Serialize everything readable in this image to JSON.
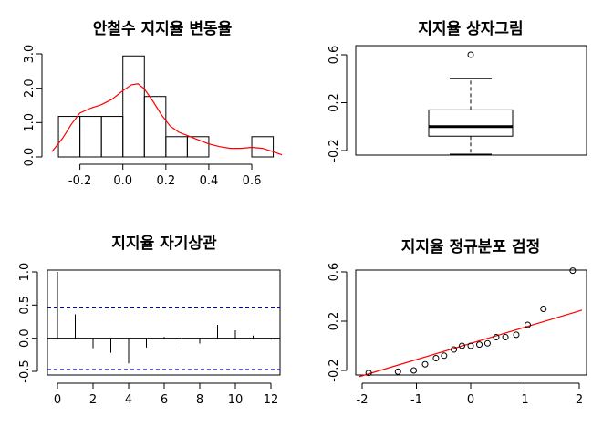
{
  "chart_data": [
    {
      "type": "histogram",
      "title": "안철수 지지율 변동율",
      "xlabel": "",
      "ylabel": "",
      "bins": [
        {
          "from": -0.3,
          "to": -0.2,
          "density": 1.18
        },
        {
          "from": -0.2,
          "to": -0.1,
          "density": 1.18
        },
        {
          "from": -0.1,
          "to": 0.0,
          "density": 1.18
        },
        {
          "from": 0.0,
          "to": 0.1,
          "density": 2.94
        },
        {
          "from": 0.1,
          "to": 0.2,
          "density": 1.76
        },
        {
          "from": 0.2,
          "to": 0.3,
          "density": 0.59
        },
        {
          "from": 0.3,
          "to": 0.4,
          "density": 0.59
        },
        {
          "from": 0.4,
          "to": 0.5,
          "density": 0.0
        },
        {
          "from": 0.5,
          "to": 0.6,
          "density": 0.0
        },
        {
          "from": 0.6,
          "to": 0.7,
          "density": 0.59
        }
      ],
      "density_curve": {
        "color": "#ff0000",
        "x": [
          -0.33,
          -0.28,
          -0.24,
          -0.2,
          -0.15,
          -0.1,
          -0.05,
          0.0,
          0.04,
          0.07,
          0.1,
          0.14,
          0.18,
          0.22,
          0.26,
          0.3,
          0.35,
          0.4,
          0.45,
          0.5,
          0.55,
          0.6,
          0.65,
          0.7,
          0.74
        ],
        "y": [
          0.15,
          0.55,
          0.95,
          1.28,
          1.42,
          1.52,
          1.68,
          1.93,
          2.1,
          2.13,
          1.98,
          1.62,
          1.22,
          0.9,
          0.72,
          0.62,
          0.5,
          0.38,
          0.3,
          0.25,
          0.25,
          0.28,
          0.25,
          0.15,
          0.06
        ]
      },
      "x_ticks": [
        -0.2,
        0.0,
        0.2,
        0.4,
        0.6
      ],
      "x_tick_labels": [
        "-0.2",
        "0.0",
        "0.2",
        "0.4",
        "0.6"
      ],
      "y_ticks": [
        0,
        1,
        2,
        3
      ],
      "y_tick_labels": [
        "0.0",
        "1.0",
        "2.0",
        "3.0"
      ],
      "xlim": [
        -0.33,
        0.74
      ],
      "ylim": [
        0,
        3.2
      ]
    },
    {
      "type": "boxplot",
      "title": "지지율 상자그림",
      "stats": {
        "min": -0.23,
        "q1": -0.08,
        "median": 0.0,
        "q3": 0.14,
        "max": 0.4
      },
      "outliers": [
        0.6
      ],
      "y_ticks": [
        -0.2,
        0.2,
        0.6
      ],
      "y_tick_labels": [
        "-0.2",
        "0.2",
        "0.6"
      ],
      "ylim": [
        -0.25,
        0.63
      ]
    },
    {
      "type": "acf",
      "title": "지지율 자기상관",
      "lags": [
        0,
        1,
        2,
        3,
        4,
        5,
        6,
        7,
        8,
        9,
        10,
        11,
        12
      ],
      "values": [
        1.0,
        0.36,
        -0.15,
        -0.22,
        -0.38,
        -0.14,
        0.02,
        -0.18,
        -0.08,
        0.2,
        0.12,
        0.04,
        -0.02
      ],
      "confidence_band": 0.47,
      "band_color": "#0000cc",
      "x_ticks": [
        0,
        2,
        4,
        6,
        8,
        10,
        12
      ],
      "x_tick_labels": [
        "0",
        "2",
        "4",
        "6",
        "8",
        "10",
        "12"
      ],
      "y_ticks": [
        -0.5,
        0.0,
        0.5,
        1.0
      ],
      "y_tick_labels": [
        "-0.5",
        "0.0",
        "0.5",
        "1.0"
      ],
      "xlim": [
        -0.4,
        12.4
      ],
      "ylim": [
        -0.53,
        1.02
      ]
    },
    {
      "type": "scatter",
      "subtype": "qq",
      "title": "지지율 정규분포 검정",
      "points": [
        {
          "x": -1.88,
          "y": -0.22
        },
        {
          "x": -1.34,
          "y": -0.21
        },
        {
          "x": -1.05,
          "y": -0.2
        },
        {
          "x": -0.84,
          "y": -0.15
        },
        {
          "x": -0.64,
          "y": -0.1
        },
        {
          "x": -0.49,
          "y": -0.08
        },
        {
          "x": -0.31,
          "y": -0.03
        },
        {
          "x": -0.16,
          "y": 0.0
        },
        {
          "x": 0.0,
          "y": 0.0
        },
        {
          "x": 0.16,
          "y": 0.01
        },
        {
          "x": 0.31,
          "y": 0.02
        },
        {
          "x": 0.47,
          "y": 0.07
        },
        {
          "x": 0.64,
          "y": 0.07
        },
        {
          "x": 0.84,
          "y": 0.09
        },
        {
          "x": 1.05,
          "y": 0.17
        },
        {
          "x": 1.34,
          "y": 0.3
        },
        {
          "x": 1.88,
          "y": 0.61
        }
      ],
      "reference_line": {
        "x1": -2.05,
        "y1": -0.25,
        "x2": 2.05,
        "y2": 0.29,
        "color": "#ff0000"
      },
      "x_ticks": [
        -2,
        -1,
        0,
        1,
        2
      ],
      "x_tick_labels": [
        "-2",
        "-1",
        "0",
        "1",
        "2"
      ],
      "y_ticks": [
        -0.2,
        0.2,
        0.6
      ],
      "y_tick_labels": [
        "-0.2",
        "0.2",
        "0.6"
      ],
      "xlim": [
        -2.05,
        2.05
      ],
      "ylim": [
        -0.25,
        0.63
      ]
    }
  ]
}
